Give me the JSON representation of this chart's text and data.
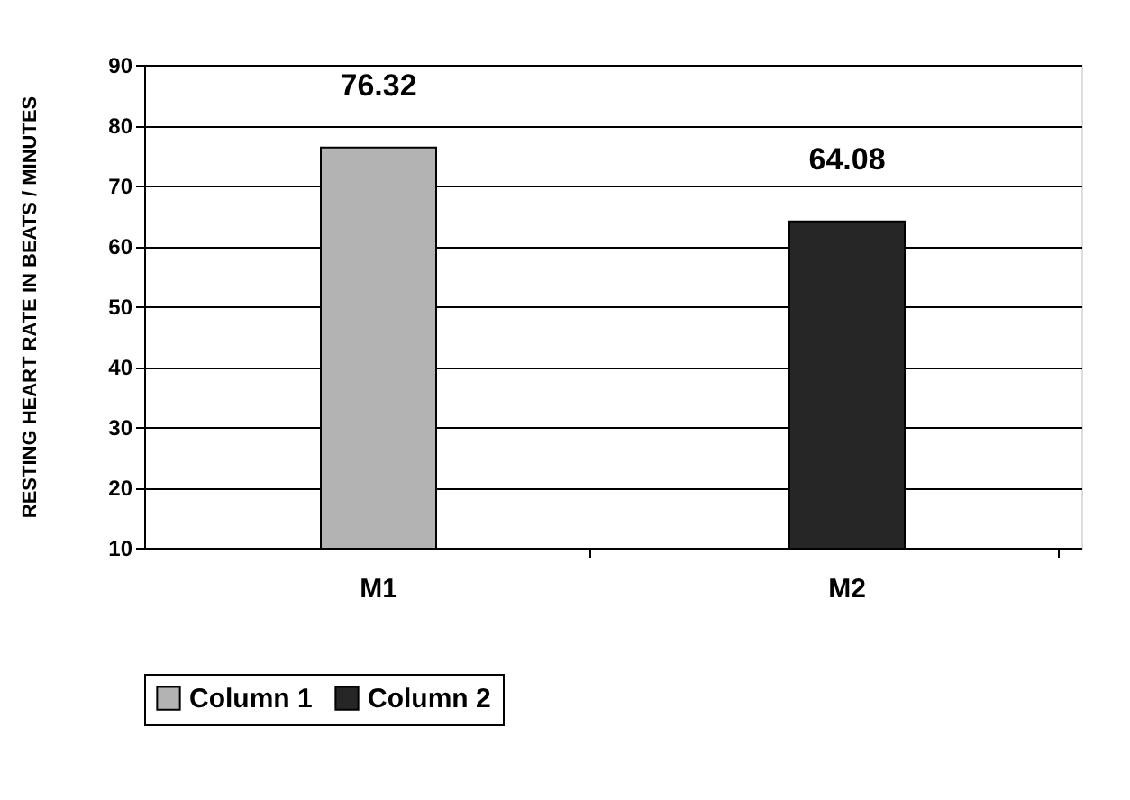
{
  "chart_data": {
    "type": "bar",
    "ylabel": "RESTING HEART RATE IN BEATS / MINUTES",
    "categories": [
      "M1",
      "M2"
    ],
    "series": [
      {
        "name": "Column 1",
        "color": "#b3b3b3",
        "values": [
          76.32,
          null
        ]
      },
      {
        "name": "Column 2",
        "color": "#262626",
        "values": [
          null,
          64.08
        ]
      }
    ],
    "ylim": [
      10,
      90
    ],
    "yticks": [
      10,
      20,
      30,
      40,
      50,
      60,
      70,
      80,
      90
    ],
    "grid": "y",
    "legend": "bottom",
    "data_labels": true
  }
}
